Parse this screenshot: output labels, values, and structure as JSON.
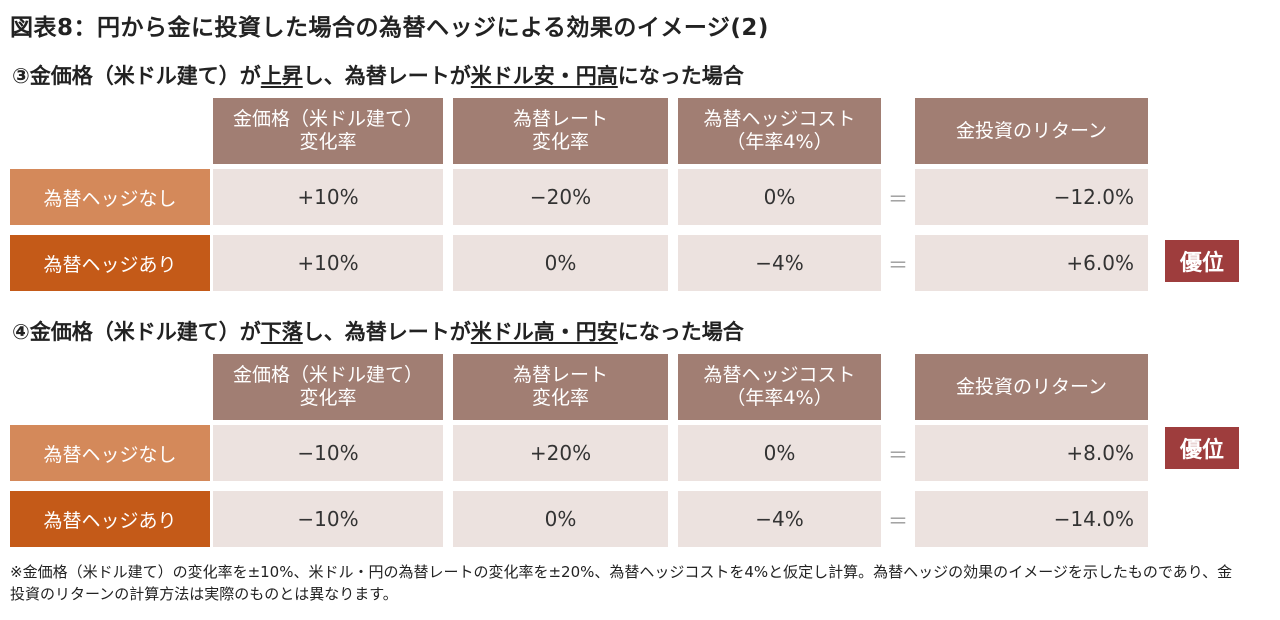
{
  "title": "図表8：円から金に投資した場合の為替ヘッジによる効果のイメージ(2)",
  "headers": {
    "gold_change": [
      "金価格（米ドル建て）",
      "変化率"
    ],
    "fx_change": [
      "為替レート",
      "変化率"
    ],
    "hedge_cost": [
      "為替ヘッジコスト",
      "（年率4%）"
    ],
    "return": "金投資のリターン"
  },
  "row_labels": {
    "no_hedge": "為替ヘッジなし",
    "with_hedge": "為替ヘッジあり"
  },
  "equals": "＝",
  "badge": "優位",
  "scenarios": [
    {
      "subtitle": {
        "pre": "③金価格（米ドル建て）が",
        "u1": "上昇",
        "mid": "し、為替レートが",
        "u2": "米ドル安・円高",
        "post": "になった場合"
      },
      "no_hedge": {
        "gold": "+10%",
        "fx": "−20%",
        "cost": "0%",
        "ret": "−12.0%"
      },
      "with_hedge": {
        "gold": "+10%",
        "fx": "0%",
        "cost": "−4%",
        "ret": "+6.0%"
      },
      "advantage": "with_hedge"
    },
    {
      "subtitle": {
        "pre": "④金価格（米ドル建て）が",
        "u1": "下落",
        "mid": "し、為替レートが",
        "u2": "米ドル高・円安",
        "post": "になった場合"
      },
      "no_hedge": {
        "gold": "−10%",
        "fx": "+20%",
        "cost": "0%",
        "ret": "+8.0%"
      },
      "with_hedge": {
        "gold": "−10%",
        "fx": "0%",
        "cost": "−4%",
        "ret": "−14.0%"
      },
      "advantage": "no_hedge"
    }
  ],
  "note": "※金価格（米ドル建て）の変化率を±10%、米ドル・円の為替レートの変化率を±20%、為替ヘッジコストを4%と仮定し計算。為替ヘッジの効果のイメージを示したものであり、金投資のリターンの計算方法は実際のものとは異なります。",
  "colors": {
    "header_bg": "#a17e73",
    "cell_bg": "#ece2df",
    "label_no_hedge": "#d4895a",
    "label_with_hedge": "#c45a18",
    "badge_bg": "#9e3d3d"
  }
}
